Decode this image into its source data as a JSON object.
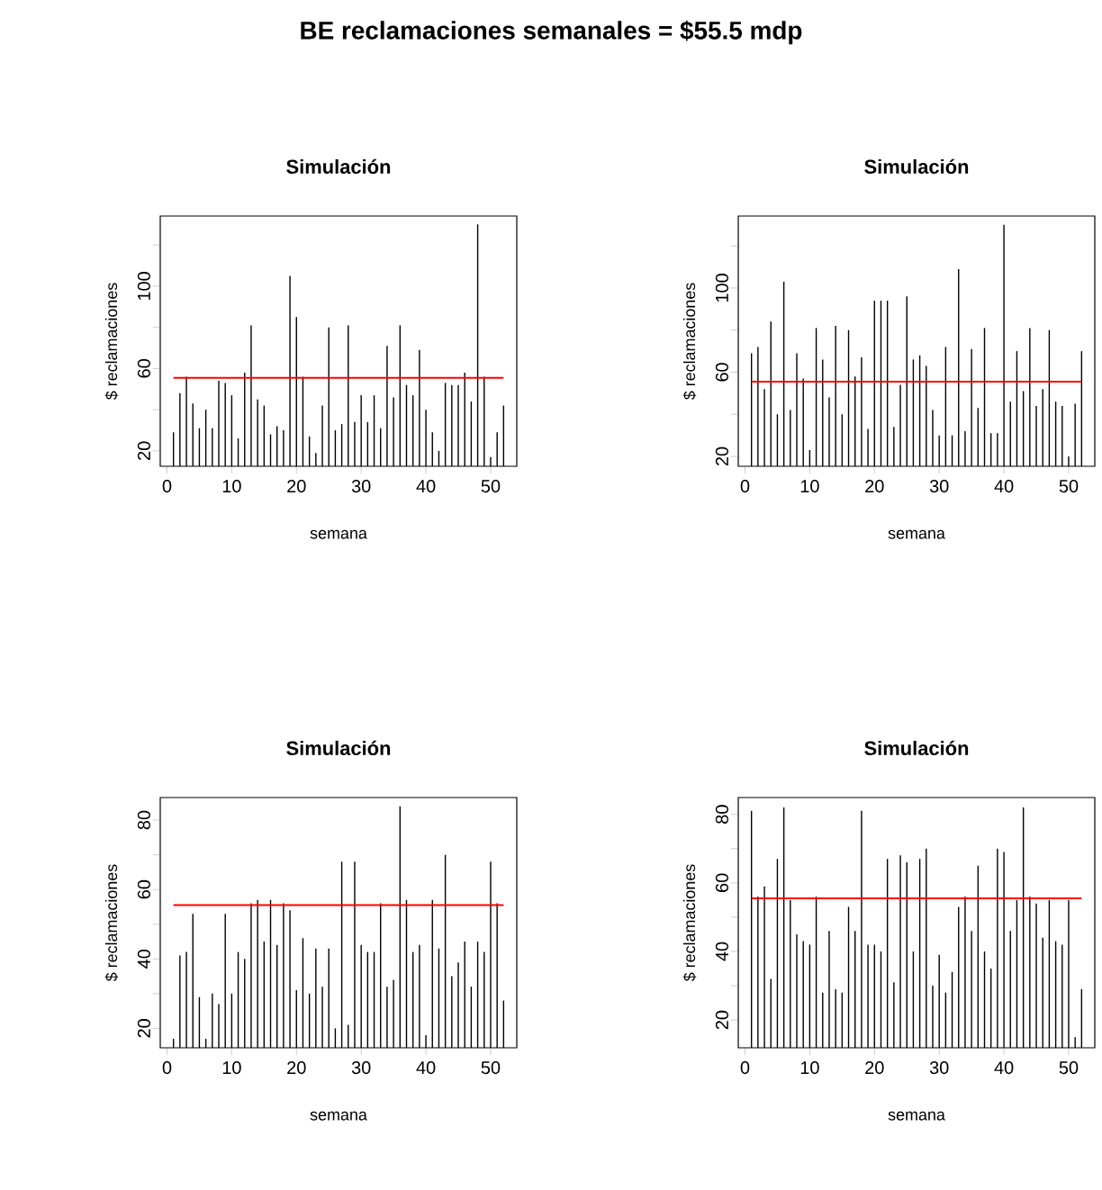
{
  "chart_data": [
    {
      "type": "bar",
      "title": "Simulación",
      "xlabel": "semana",
      "ylabel": "$ reclamaciones",
      "annotations": [
        "BE reclamaciones semanales = $55.5 mdp"
      ],
      "color": "#000000",
      "x": [
        1,
        2,
        3,
        4,
        5,
        6,
        7,
        8,
        9,
        10,
        11,
        12,
        13,
        14,
        15,
        16,
        17,
        18,
        19,
        20,
        21,
        22,
        23,
        24,
        25,
        26,
        27,
        28,
        29,
        30,
        31,
        32,
        33,
        34,
        35,
        36,
        37,
        38,
        39,
        40,
        41,
        42,
        43,
        44,
        45,
        46,
        47,
        48,
        49,
        50,
        51,
        52
      ],
      "values": [
        29,
        48,
        56,
        43,
        31,
        40,
        31,
        54,
        53,
        47,
        26,
        58,
        81,
        45,
        42,
        28,
        32,
        30,
        105,
        85,
        56,
        27,
        19,
        42,
        80,
        30,
        33,
        81,
        34,
        47,
        34,
        47,
        31,
        71,
        46,
        81,
        52,
        47,
        69,
        40,
        29,
        20,
        53,
        52,
        52,
        58,
        44,
        130,
        56,
        17,
        29,
        42
      ],
      "xlim": [
        -1.04,
        54.04
      ],
      "ylim": [
        12.5,
        134.1
      ],
      "xticks": [
        0,
        10,
        20,
        30,
        40,
        50
      ],
      "yticks": [
        20,
        {
          "value": 40,
          "label": null
        },
        60,
        {
          "value": 80,
          "label": null
        },
        100,
        {
          "value": 120,
          "label": null
        }
      ],
      "ref_lines": [
        {
          "axis": "y",
          "value": 55.5,
          "color": "#ff0000"
        }
      ]
    },
    {
      "type": "bar",
      "title": "Simulación",
      "xlabel": "semana",
      "ylabel": "$ reclamaciones",
      "color": "#000000",
      "x": [
        1,
        2,
        3,
        4,
        5,
        6,
        7,
        8,
        9,
        10,
        11,
        12,
        13,
        14,
        15,
        16,
        17,
        18,
        19,
        20,
        21,
        22,
        23,
        24,
        25,
        26,
        27,
        28,
        29,
        30,
        31,
        32,
        33,
        34,
        35,
        36,
        37,
        38,
        39,
        40,
        41,
        42,
        43,
        44,
        45,
        46,
        47,
        48,
        49,
        50,
        51,
        52
      ],
      "values": [
        69,
        72,
        52,
        84,
        40,
        103,
        42,
        69,
        57,
        23,
        81,
        66,
        48,
        82,
        40,
        80,
        58,
        67,
        33,
        94,
        94,
        94,
        34,
        54,
        96,
        66,
        68,
        63,
        42,
        30,
        72,
        30,
        109,
        32,
        71,
        43,
        81,
        31,
        31,
        130,
        46,
        70,
        51,
        81,
        44,
        52,
        80,
        46,
        44,
        20,
        45,
        70
      ],
      "xlim": [
        -1.04,
        54.04
      ],
      "ylim": [
        15.3,
        134.2
      ],
      "xticks": [
        0,
        10,
        20,
        30,
        40,
        50
      ],
      "yticks": [
        20,
        {
          "value": 40,
          "label": null
        },
        60,
        {
          "value": 80,
          "label": null
        },
        100,
        {
          "value": 120,
          "label": null
        }
      ],
      "ref_lines": [
        {
          "axis": "y",
          "value": 55.5,
          "color": "#ff0000"
        }
      ]
    },
    {
      "type": "bar",
      "title": "Simulación",
      "xlabel": "semana",
      "ylabel": "$ reclamaciones",
      "color": "#000000",
      "x": [
        1,
        2,
        3,
        4,
        5,
        6,
        7,
        8,
        9,
        10,
        11,
        12,
        13,
        14,
        15,
        16,
        17,
        18,
        19,
        20,
        21,
        22,
        23,
        24,
        25,
        26,
        27,
        28,
        29,
        30,
        31,
        32,
        33,
        34,
        35,
        36,
        37,
        38,
        39,
        40,
        41,
        42,
        43,
        44,
        45,
        46,
        47,
        48,
        49,
        50,
        51,
        52
      ],
      "values": [
        17,
        41,
        42,
        53,
        29,
        17,
        30,
        27,
        53,
        30,
        42,
        40,
        56,
        57,
        45,
        57,
        44,
        56,
        54,
        31,
        46,
        30,
        43,
        32,
        43,
        20,
        68,
        21,
        68,
        44,
        42,
        42,
        56,
        32,
        34,
        84,
        57,
        42,
        44,
        18,
        57,
        43,
        70,
        35,
        39,
        45,
        32,
        45,
        42,
        68,
        56,
        28
      ],
      "xlim": [
        -1.04,
        54.04
      ],
      "ylim": [
        14.4,
        86.5
      ],
      "xticks": [
        0,
        10,
        20,
        30,
        40,
        50
      ],
      "yticks": [
        20,
        {
          "value": 30,
          "label": null
        },
        40,
        {
          "value": 50,
          "label": null
        },
        60,
        {
          "value": 70,
          "label": null
        },
        80
      ],
      "ref_lines": [
        {
          "axis": "y",
          "value": 55.5,
          "color": "#ff0000"
        }
      ]
    },
    {
      "type": "bar",
      "title": "Simulación",
      "xlabel": "semana",
      "ylabel": "$ reclamaciones",
      "color": "#000000",
      "x": [
        1,
        2,
        3,
        4,
        5,
        6,
        7,
        8,
        9,
        10,
        11,
        12,
        13,
        14,
        15,
        16,
        17,
        18,
        19,
        20,
        21,
        22,
        23,
        24,
        25,
        26,
        27,
        28,
        29,
        30,
        31,
        32,
        33,
        34,
        35,
        36,
        37,
        38,
        39,
        40,
        41,
        42,
        43,
        44,
        45,
        46,
        47,
        48,
        49,
        50,
        51,
        52
      ],
      "values": [
        81,
        56,
        59,
        32,
        67,
        82,
        55,
        45,
        43,
        42,
        56,
        28,
        46,
        29,
        28,
        53,
        46,
        81,
        42,
        42,
        40,
        67,
        31,
        68,
        66,
        40,
        67,
        70,
        30,
        39,
        28,
        34,
        53,
        56,
        46,
        65,
        40,
        35,
        70,
        69,
        46,
        55,
        82,
        56,
        54,
        44,
        55,
        43,
        42,
        55,
        15,
        29
      ],
      "xlim": [
        -1.04,
        54.04
      ],
      "ylim": [
        11.9,
        84.9
      ],
      "xticks": [
        0,
        10,
        20,
        30,
        40,
        50
      ],
      "yticks": [
        20,
        {
          "value": 30,
          "label": null
        },
        40,
        {
          "value": 50,
          "label": null
        },
        60,
        {
          "value": 70,
          "label": null
        },
        80
      ],
      "ref_lines": [
        {
          "axis": "y",
          "value": 55.5,
          "color": "#ff0000"
        }
      ]
    }
  ]
}
